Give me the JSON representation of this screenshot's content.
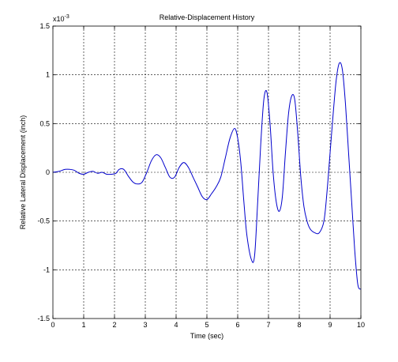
{
  "chart_data": {
    "type": "line",
    "title": "Relative-Displacement History",
    "xlabel": "Time (sec)",
    "ylabel": "Relative Lateral Displacement (inch)",
    "y_scale_label_base": "x10",
    "y_scale_label_exp": "-3",
    "xlim": [
      0,
      10
    ],
    "ylim": [
      -1.5,
      1.5
    ],
    "x_ticks": [
      0,
      1,
      2,
      3,
      4,
      5,
      6,
      7,
      8,
      9,
      10
    ],
    "x_tick_labels": [
      "0",
      "1",
      "2",
      "3",
      "4",
      "5",
      "6",
      "7",
      "8",
      "9",
      "10"
    ],
    "y_ticks": [
      1.5,
      1,
      0.5,
      0,
      -0.5,
      -1,
      -1.5
    ],
    "y_tick_labels": [
      "1.5",
      "1",
      "0.5",
      "0",
      "-0.5",
      "-1",
      "-1.5"
    ],
    "grid": true,
    "grid_style": "dashed",
    "line_color": "#0000cc",
    "series": [
      {
        "x": [
          0,
          0.2,
          0.4,
          0.55,
          0.7,
          0.85,
          1.0,
          1.15,
          1.3,
          1.45,
          1.6,
          1.75,
          1.9,
          2.05,
          2.15,
          2.3,
          2.45,
          2.6,
          2.75,
          2.9,
          3.05,
          3.2,
          3.35,
          3.5,
          3.65,
          3.8,
          3.95,
          4.1,
          4.25,
          4.4,
          4.55,
          4.7,
          4.85,
          5.0,
          5.15,
          5.3,
          5.45,
          5.6,
          5.75,
          5.9,
          6.0,
          6.1,
          6.2,
          6.3,
          6.45,
          6.55,
          6.65,
          6.75,
          6.85,
          6.95,
          7.05,
          7.15,
          7.25,
          7.35,
          7.45,
          7.55,
          7.65,
          7.75,
          7.85,
          7.95,
          8.05,
          8.15,
          8.25,
          8.35,
          8.5,
          8.65,
          8.8,
          8.9,
          9.0,
          9.1,
          9.2,
          9.3,
          9.4,
          9.5,
          9.6,
          9.7,
          9.8,
          9.9,
          10.0
        ],
        "values": [
          0.0,
          0.01,
          0.03,
          0.03,
          0.02,
          -0.01,
          -0.02,
          0.0,
          0.01,
          -0.01,
          0.0,
          -0.02,
          -0.02,
          -0.01,
          0.03,
          0.03,
          -0.04,
          -0.1,
          -0.12,
          -0.1,
          0.0,
          0.12,
          0.18,
          0.15,
          0.05,
          -0.05,
          -0.05,
          0.05,
          0.1,
          0.05,
          -0.05,
          -0.15,
          -0.25,
          -0.28,
          -0.22,
          -0.15,
          -0.05,
          0.15,
          0.35,
          0.45,
          0.35,
          0.1,
          -0.3,
          -0.65,
          -0.9,
          -0.85,
          -0.3,
          0.3,
          0.75,
          0.82,
          0.5,
          0.0,
          -0.3,
          -0.4,
          -0.25,
          0.2,
          0.6,
          0.78,
          0.75,
          0.4,
          -0.05,
          -0.35,
          -0.5,
          -0.58,
          -0.62,
          -0.62,
          -0.5,
          -0.2,
          0.2,
          0.6,
          0.95,
          1.12,
          1.05,
          0.7,
          0.2,
          -0.3,
          -0.8,
          -1.15,
          -1.2
        ]
      }
    ]
  }
}
